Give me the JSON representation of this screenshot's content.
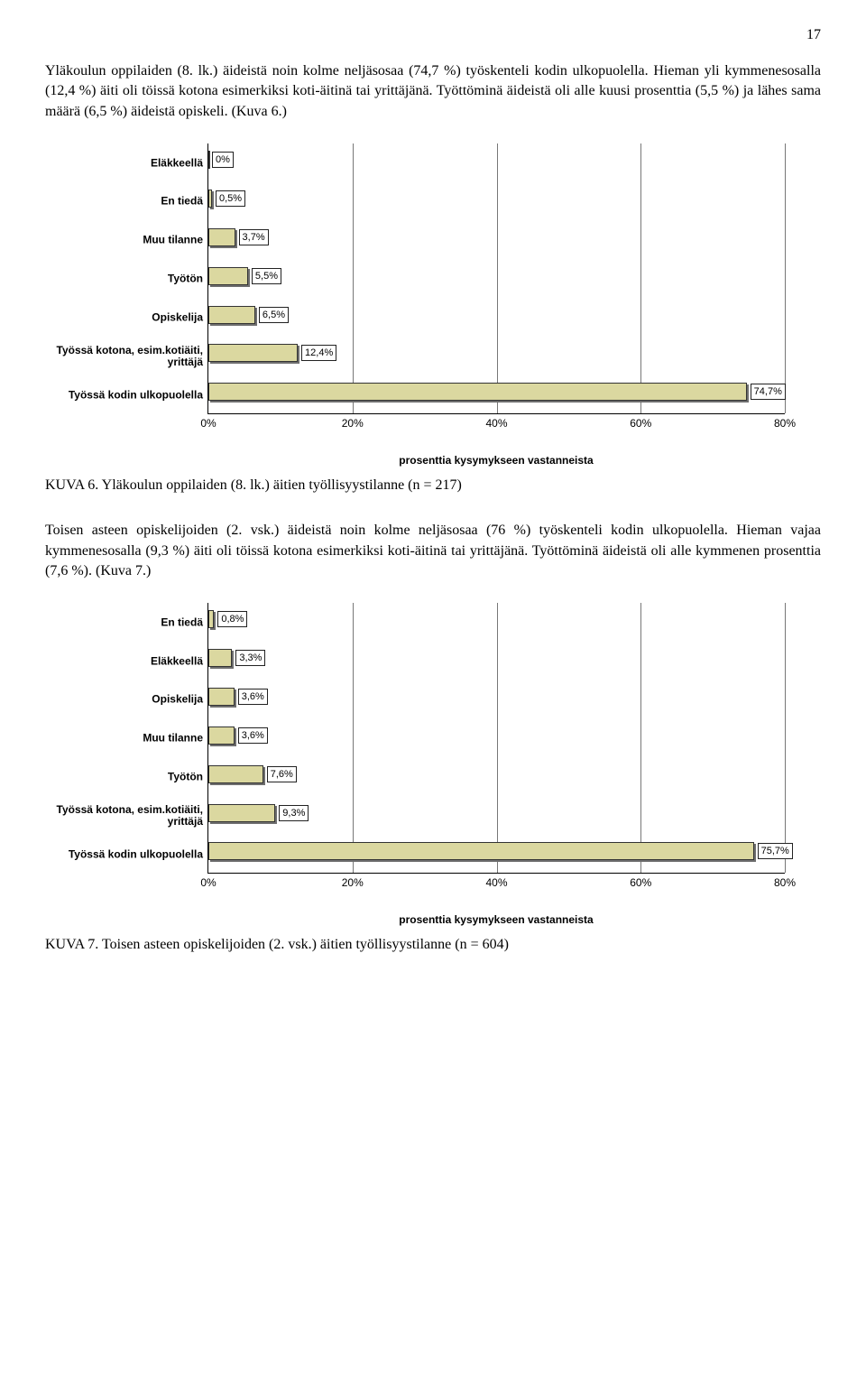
{
  "page_number": "17",
  "para1": "Yläkoulun oppilaiden (8. lk.) äideistä noin kolme neljäsosaa (74,7 %) työskenteli kodin ulkopuolella. Hieman yli kymmenesosalla (12,4 %) äiti oli töissä kotona esimerkiksi koti-äitinä tai yrittäjänä. Työttöminä äideistä oli alle kuusi prosenttia (5,5 %) ja lähes sama määrä (6,5 %) äideistä opiskeli. (Kuva 6.)",
  "para2": "Toisen asteen opiskelijoiden (2. vsk.) äideistä noin kolme neljäsosaa (76 %) työskenteli kodin ulkopuolella. Hieman vajaa kymmenesosalla (9,3 %) äiti oli töissä kotona esimerkiksi koti-äitinä tai yrittäjänä. Työttöminä äideistä oli alle kymmenen prosenttia (7,6 %). (Kuva 7.)",
  "caption1": "KUVA 6. Yläkoulun oppilaiden (8. lk.) äitien työllisyystilanne (n = 217)",
  "caption2": "KUVA 7. Toisen asteen opiskelijoiden (2. vsk.) äitien työllisyystilanne (n = 604)",
  "chart1": {
    "bar_color": "#dbd8a0",
    "bar_border": "#333333",
    "shadow_color": "#6e6e6e",
    "xmax": 80,
    "xticks": [
      "0%",
      "20%",
      "40%",
      "60%",
      "80%"
    ],
    "xlabel": "prosenttia kysymykseen vastanneista",
    "rows": [
      {
        "label": "Eläkkeellä",
        "value": 0,
        "text": "0%"
      },
      {
        "label": "En tiedä",
        "value": 0.5,
        "text": "0,5%"
      },
      {
        "label": "Muu tilanne",
        "value": 3.7,
        "text": "3,7%"
      },
      {
        "label": "Työtön",
        "value": 5.5,
        "text": "5,5%"
      },
      {
        "label": "Opiskelija",
        "value": 6.5,
        "text": "6,5%"
      },
      {
        "label": "Työssä kotona, esim.kotiäiti, yrittäjä",
        "value": 12.4,
        "text": "12,4%"
      },
      {
        "label": "Työssä kodin ulkopuolella",
        "value": 74.7,
        "text": "74,7%"
      }
    ]
  },
  "chart2": {
    "bar_color": "#dbd8a0",
    "bar_border": "#333333",
    "shadow_color": "#6e6e6e",
    "xmax": 80,
    "xticks": [
      "0%",
      "20%",
      "40%",
      "60%",
      "80%"
    ],
    "xlabel": "prosenttia kysymykseen vastanneista",
    "rows": [
      {
        "label": "En tiedä",
        "value": 0.8,
        "text": "0,8%"
      },
      {
        "label": "Eläkkeellä",
        "value": 3.3,
        "text": "3,3%"
      },
      {
        "label": "Opiskelija",
        "value": 3.6,
        "text": "3,6%"
      },
      {
        "label": "Muu tilanne",
        "value": 3.6,
        "text": "3,6%"
      },
      {
        "label": "Työtön",
        "value": 7.6,
        "text": "7,6%"
      },
      {
        "label": "Työssä kotona, esim.kotiäiti, yrittäjä",
        "value": 9.3,
        "text": "9,3%"
      },
      {
        "label": "Työssä kodin ulkopuolella",
        "value": 75.7,
        "text": "75,7%"
      }
    ]
  }
}
